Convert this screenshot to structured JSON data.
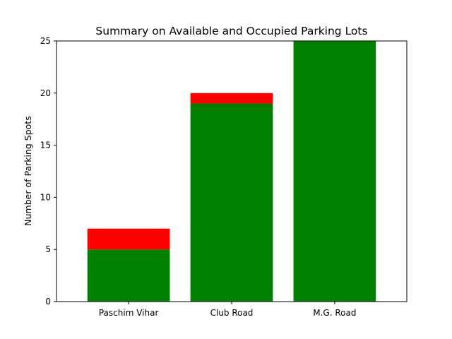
{
  "chart_data": {
    "type": "bar",
    "stacked": true,
    "title": "Summary on Available and Occupied Parking Lots",
    "xlabel": "",
    "ylabel": "Number of Parking Spots",
    "categories": [
      "Paschim Vihar",
      "Club Road",
      "M.G. Road"
    ],
    "series": [
      {
        "values": [
          5,
          19,
          25
        ],
        "color": "#008000"
      },
      {
        "values": [
          2,
          1,
          0
        ],
        "color": "#ff0000"
      }
    ],
    "ylim": [
      0,
      25
    ],
    "yticks": [
      0,
      5,
      10,
      15,
      20,
      25
    ],
    "grid": false,
    "legend": "none"
  }
}
